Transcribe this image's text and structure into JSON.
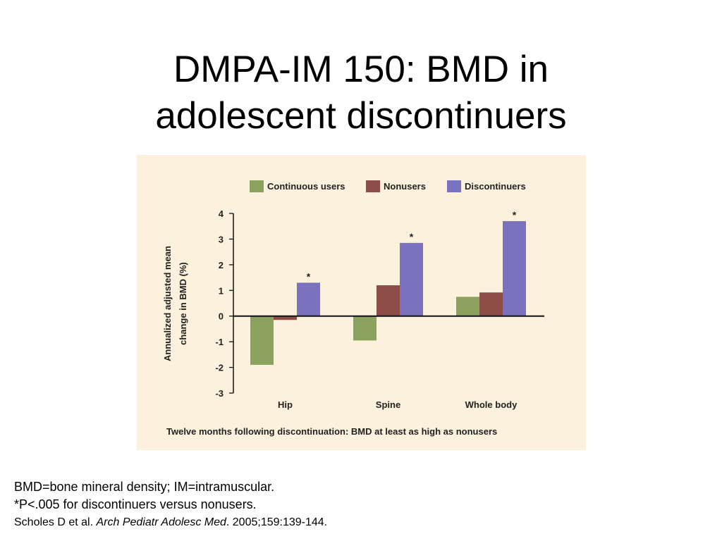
{
  "slide": {
    "title_lines": [
      "DMPA-IM 150: BMD in",
      "adolescent discontinuers"
    ],
    "footnotes": {
      "definitions": "BMD=bone mineral density; IM=intramuscular.",
      "significance": "*P<.005 for discontinuers versus nonusers.",
      "citation_authors": "Scholes D et al. ",
      "citation_journal": "Arch Pediatr Adolesc Med",
      "citation_rest": ". 2005;159:139-144."
    }
  },
  "chart_data": {
    "type": "bar",
    "background": "#fbf1dc",
    "categories": [
      "Hip",
      "Spine",
      "Whole body"
    ],
    "ylabel": "Annualized adjusted mean change in BMD (%)",
    "ylabel_lines": [
      "Annualized adjusted mean",
      "change in BMD (%)"
    ],
    "ylim": [
      -3,
      4
    ],
    "yticks": [
      4,
      3,
      2,
      1,
      0,
      -1,
      -2,
      -3
    ],
    "legend_position": "top",
    "series": [
      {
        "name": "Continuous users",
        "color": "#8aa25e",
        "values": [
          -1.9,
          -0.95,
          0.75
        ]
      },
      {
        "name": "Nonusers",
        "color": "#8e4c47",
        "values": [
          -0.15,
          1.2,
          0.92
        ]
      },
      {
        "name": "Discontinuers",
        "color": "#7a72be",
        "values": [
          1.3,
          2.85,
          3.7
        ]
      }
    ],
    "significance_marker": "*",
    "significant_series": "Discontinuers",
    "caption": "Twelve months following discontinuation: BMD at least as high as nonusers"
  }
}
